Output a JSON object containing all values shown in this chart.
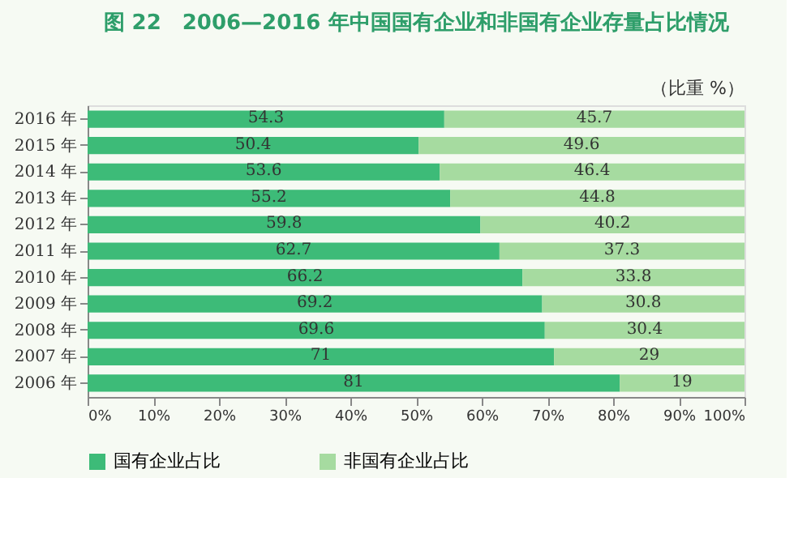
{
  "chart_data": {
    "type": "bar",
    "orientation": "horizontal",
    "stacked": true,
    "title": "图 22　2006—2016 年中国国有企业和非国有企业存量占比情况",
    "annotations": [
      "（比重 %）"
    ],
    "categories": [
      "2016 年",
      "2015 年",
      "2014 年",
      "2013 年",
      "2012 年",
      "2011 年",
      "2010 年",
      "2009 年",
      "2008 年",
      "2007 年",
      "2006 年"
    ],
    "series": [
      {
        "name": "国有企业占比",
        "color": "#3dbb78",
        "values": [
          54.3,
          50.4,
          53.6,
          55.2,
          59.8,
          62.7,
          66.2,
          69.2,
          69.6,
          71,
          81
        ]
      },
      {
        "name": "非国有企业占比",
        "color": "#a6dba0",
        "values": [
          45.7,
          49.6,
          46.4,
          44.8,
          40.2,
          37.3,
          33.8,
          30.8,
          30.4,
          29,
          19
        ]
      }
    ],
    "xlim": [
      0,
      100
    ],
    "xticks": [
      {
        "value": 0,
        "label": "0%"
      },
      {
        "value": 10,
        "label": "10%"
      },
      {
        "value": 20,
        "label": "20%"
      },
      {
        "value": 30,
        "label": "30%"
      },
      {
        "value": 40,
        "label": "40%"
      },
      {
        "value": 50,
        "label": "50%"
      },
      {
        "value": 60,
        "label": "60%"
      },
      {
        "value": 70,
        "label": "70%"
      },
      {
        "value": 80,
        "label": "80%"
      },
      {
        "value": 90,
        "label": "90%"
      },
      {
        "value": 100,
        "label": "100%"
      }
    ],
    "data_labels": true,
    "grid": false,
    "legend": "bottom"
  }
}
